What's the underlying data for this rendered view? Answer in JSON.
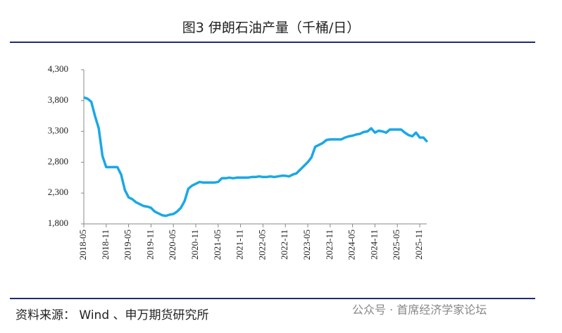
{
  "chart_data": {
    "type": "line",
    "title": "图3 伊朗石油产量（千桶/日）",
    "categories": [
      "2018-05",
      null,
      null,
      null,
      null,
      null,
      "2018-11",
      null,
      null,
      null,
      null,
      null,
      "2019-05",
      null,
      null,
      null,
      null,
      null,
      "2019-11",
      null,
      null,
      null,
      null,
      null,
      "2020-05",
      null,
      null,
      null,
      null,
      null,
      "2020-11",
      null,
      null,
      null,
      null,
      null,
      "2021-05",
      null,
      null,
      null,
      null,
      null,
      "2021-11",
      null,
      null,
      null,
      null,
      null,
      "2022-05",
      null,
      null,
      null,
      null,
      null,
      "2022-11",
      null,
      null,
      null,
      null,
      null,
      "2023-05",
      null,
      null,
      null,
      null,
      null,
      "2023-11",
      null,
      null,
      null,
      null,
      null,
      "2024-05",
      null,
      null,
      null,
      null,
      null,
      "2024-11",
      null,
      null,
      null,
      null,
      null,
      "2025-05",
      null,
      null,
      null,
      null,
      null,
      "2025-11",
      null,
      null
    ],
    "series": [
      {
        "color": "#1aa8e6",
        "values": [
          3850,
          3830,
          3780,
          3550,
          3350,
          2900,
          2720,
          2720,
          2720,
          2720,
          2600,
          2350,
          2230,
          2200,
          2150,
          2120,
          2090,
          2080,
          2060,
          2000,
          1970,
          1940,
          1930,
          1950,
          1960,
          2000,
          2060,
          2170,
          2370,
          2420,
          2450,
          2480,
          2470,
          2470,
          2470,
          2470,
          2480,
          2540,
          2540,
          2550,
          2540,
          2550,
          2550,
          2550,
          2550,
          2560,
          2560,
          2570,
          2560,
          2560,
          2570,
          2560,
          2570,
          2580,
          2580,
          2570,
          2600,
          2620,
          2680,
          2740,
          2800,
          2880,
          3050,
          3080,
          3110,
          3160,
          3170,
          3170,
          3170,
          3170,
          3200,
          3220,
          3230,
          3250,
          3260,
          3290,
          3300,
          3350,
          3280,
          3310,
          3300,
          3280,
          3330,
          3330,
          3330,
          3330,
          3280,
          3240,
          3220,
          3280,
          3200,
          3200,
          3130
        ]
      }
    ],
    "ylim": [
      1800,
      4300
    ],
    "yticks": [
      {
        "value": 1800,
        "label": "1,800"
      },
      {
        "value": 2300,
        "label": "2,300"
      },
      {
        "value": 2800,
        "label": "2,800"
      },
      {
        "value": 3300,
        "label": "3,300"
      },
      {
        "value": 3800,
        "label": "3,800"
      },
      {
        "value": 4300,
        "label": "4,300"
      }
    ],
    "grid": false,
    "source": "资料来源：  Wind  、申万期货研究所",
    "watermark": "公众号 · 首席经济学家论坛"
  }
}
